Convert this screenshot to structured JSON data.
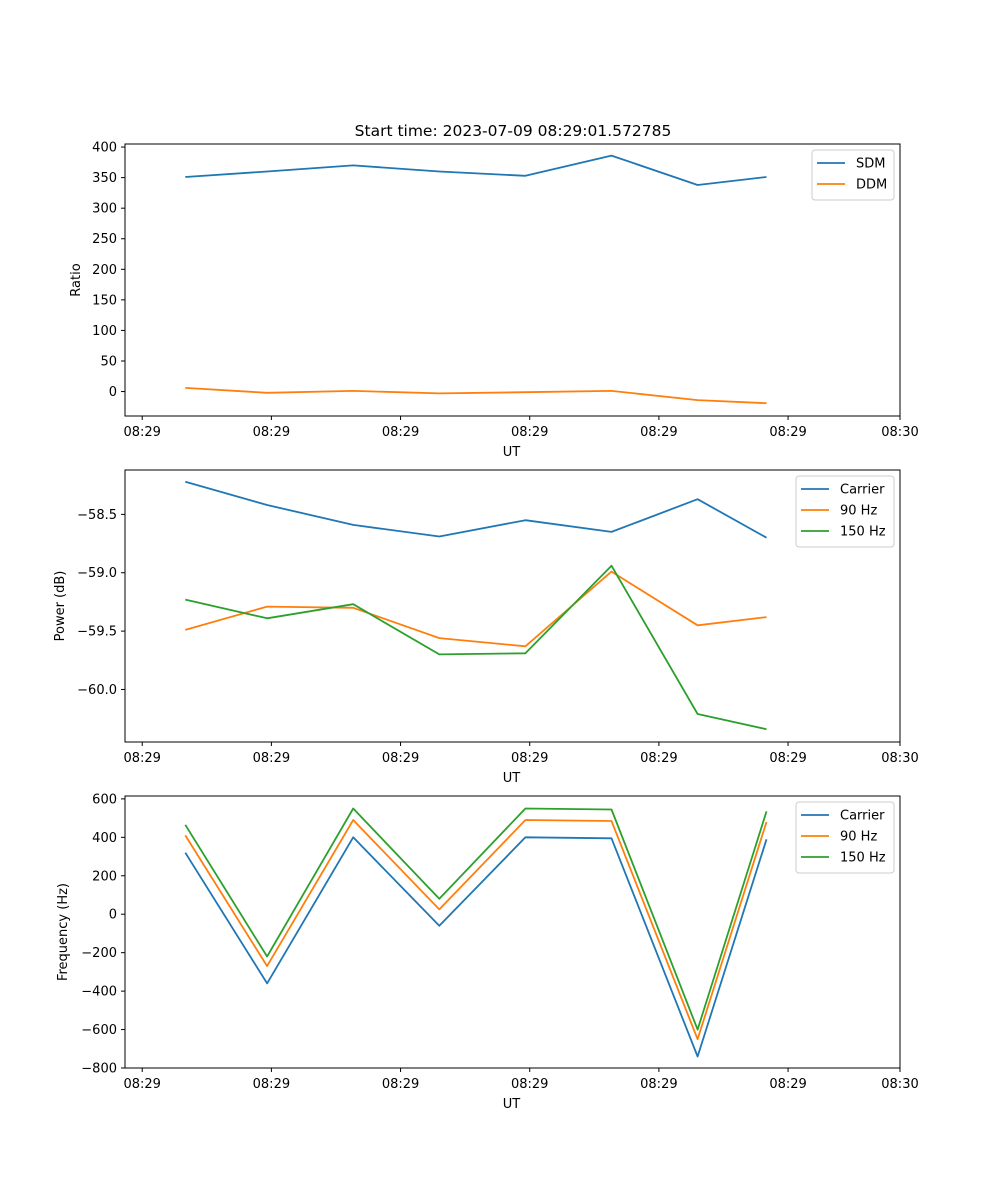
{
  "figure_title": "Start time: 2023-07-09 08:29:01.572785",
  "colors": {
    "blue": "#1f77b4",
    "orange": "#ff7f0e",
    "green": "#2ca02c"
  },
  "chart_data": [
    {
      "type": "line",
      "title": "Start time: 2023-07-09 08:29:01.572785",
      "xlabel": "UT",
      "ylabel": "Ratio",
      "xlim": [
        0,
        9
      ],
      "ylim": [
        -40,
        405
      ],
      "x": [
        0.7,
        1.65,
        2.65,
        3.65,
        4.65,
        5.65,
        6.65,
        7.45
      ],
      "x_ticks": [
        0.2,
        1.7,
        3.2,
        4.7,
        6.2,
        7.7,
        9.0
      ],
      "x_tick_labels": [
        "08:29",
        "08:29",
        "08:29",
        "08:29",
        "08:29",
        "08:29",
        "08:30"
      ],
      "y_ticks": [
        0,
        50,
        100,
        150,
        200,
        250,
        300,
        350,
        400
      ],
      "y_tick_labels": [
        "0",
        "50",
        "100",
        "150",
        "200",
        "250",
        "300",
        "350",
        "400"
      ],
      "legend_position": "top-right",
      "series": [
        {
          "name": "SDM",
          "color": "#1f77b4",
          "values": [
            351,
            360,
            370,
            360,
            353,
            386,
            338,
            351
          ]
        },
        {
          "name": "DDM",
          "color": "#ff7f0e",
          "values": [
            6,
            -2,
            1,
            -3,
            -1,
            1,
            -14,
            -19
          ]
        }
      ]
    },
    {
      "type": "line",
      "xlabel": "UT",
      "ylabel": "Power (dB)",
      "xlim": [
        0,
        9
      ],
      "ylim": [
        -60.45,
        -58.12
      ],
      "x": [
        0.7,
        1.65,
        2.65,
        3.65,
        4.65,
        5.65,
        6.65,
        7.45
      ],
      "x_ticks": [
        0.2,
        1.7,
        3.2,
        4.7,
        6.2,
        7.7,
        9.0
      ],
      "x_tick_labels": [
        "08:29",
        "08:29",
        "08:29",
        "08:29",
        "08:29",
        "08:29",
        "08:30"
      ],
      "y_ticks": [
        -60.0,
        -59.5,
        -59.0,
        -58.5
      ],
      "y_tick_labels": [
        "−60.0",
        "−59.5",
        "−59.0",
        "−58.5"
      ],
      "legend_position": "top-right",
      "series": [
        {
          "name": "Carrier",
          "color": "#1f77b4",
          "values": [
            -58.22,
            -58.42,
            -58.59,
            -58.69,
            -58.55,
            -58.65,
            -58.37,
            -58.7
          ]
        },
        {
          "name": "90 Hz",
          "color": "#ff7f0e",
          "values": [
            -59.49,
            -59.29,
            -59.3,
            -59.56,
            -59.63,
            -58.99,
            -59.45,
            -59.38
          ]
        },
        {
          "name": "150 Hz",
          "color": "#2ca02c",
          "values": [
            -59.23,
            -59.39,
            -59.27,
            -59.7,
            -59.69,
            -58.94,
            -60.21,
            -60.34
          ]
        }
      ]
    },
    {
      "type": "line",
      "xlabel": "UT",
      "ylabel": "Frequency (Hz)",
      "xlim": [
        0,
        9
      ],
      "ylim": [
        -800,
        615
      ],
      "x": [
        0.7,
        1.65,
        2.65,
        3.65,
        4.65,
        5.65,
        6.65,
        7.45
      ],
      "x_ticks": [
        0.2,
        1.7,
        3.2,
        4.7,
        6.2,
        7.7,
        9.0
      ],
      "x_tick_labels": [
        "08:29",
        "08:29",
        "08:29",
        "08:29",
        "08:29",
        "08:29",
        "08:30"
      ],
      "y_ticks": [
        -800,
        -600,
        -400,
        -200,
        0,
        200,
        400,
        600
      ],
      "y_tick_labels": [
        "−800",
        "−600",
        "−400",
        "−200",
        "0",
        "200",
        "400",
        "600"
      ],
      "legend_position": "top-right",
      "series": [
        {
          "name": "Carrier",
          "color": "#1f77b4",
          "values": [
            320,
            -360,
            400,
            -60,
            400,
            395,
            -740,
            390
          ]
        },
        {
          "name": "90 Hz",
          "color": "#ff7f0e",
          "values": [
            410,
            -270,
            490,
            25,
            490,
            485,
            -650,
            480
          ]
        },
        {
          "name": "150 Hz",
          "color": "#2ca02c",
          "values": [
            465,
            -220,
            550,
            80,
            550,
            545,
            -600,
            535
          ]
        }
      ]
    }
  ]
}
